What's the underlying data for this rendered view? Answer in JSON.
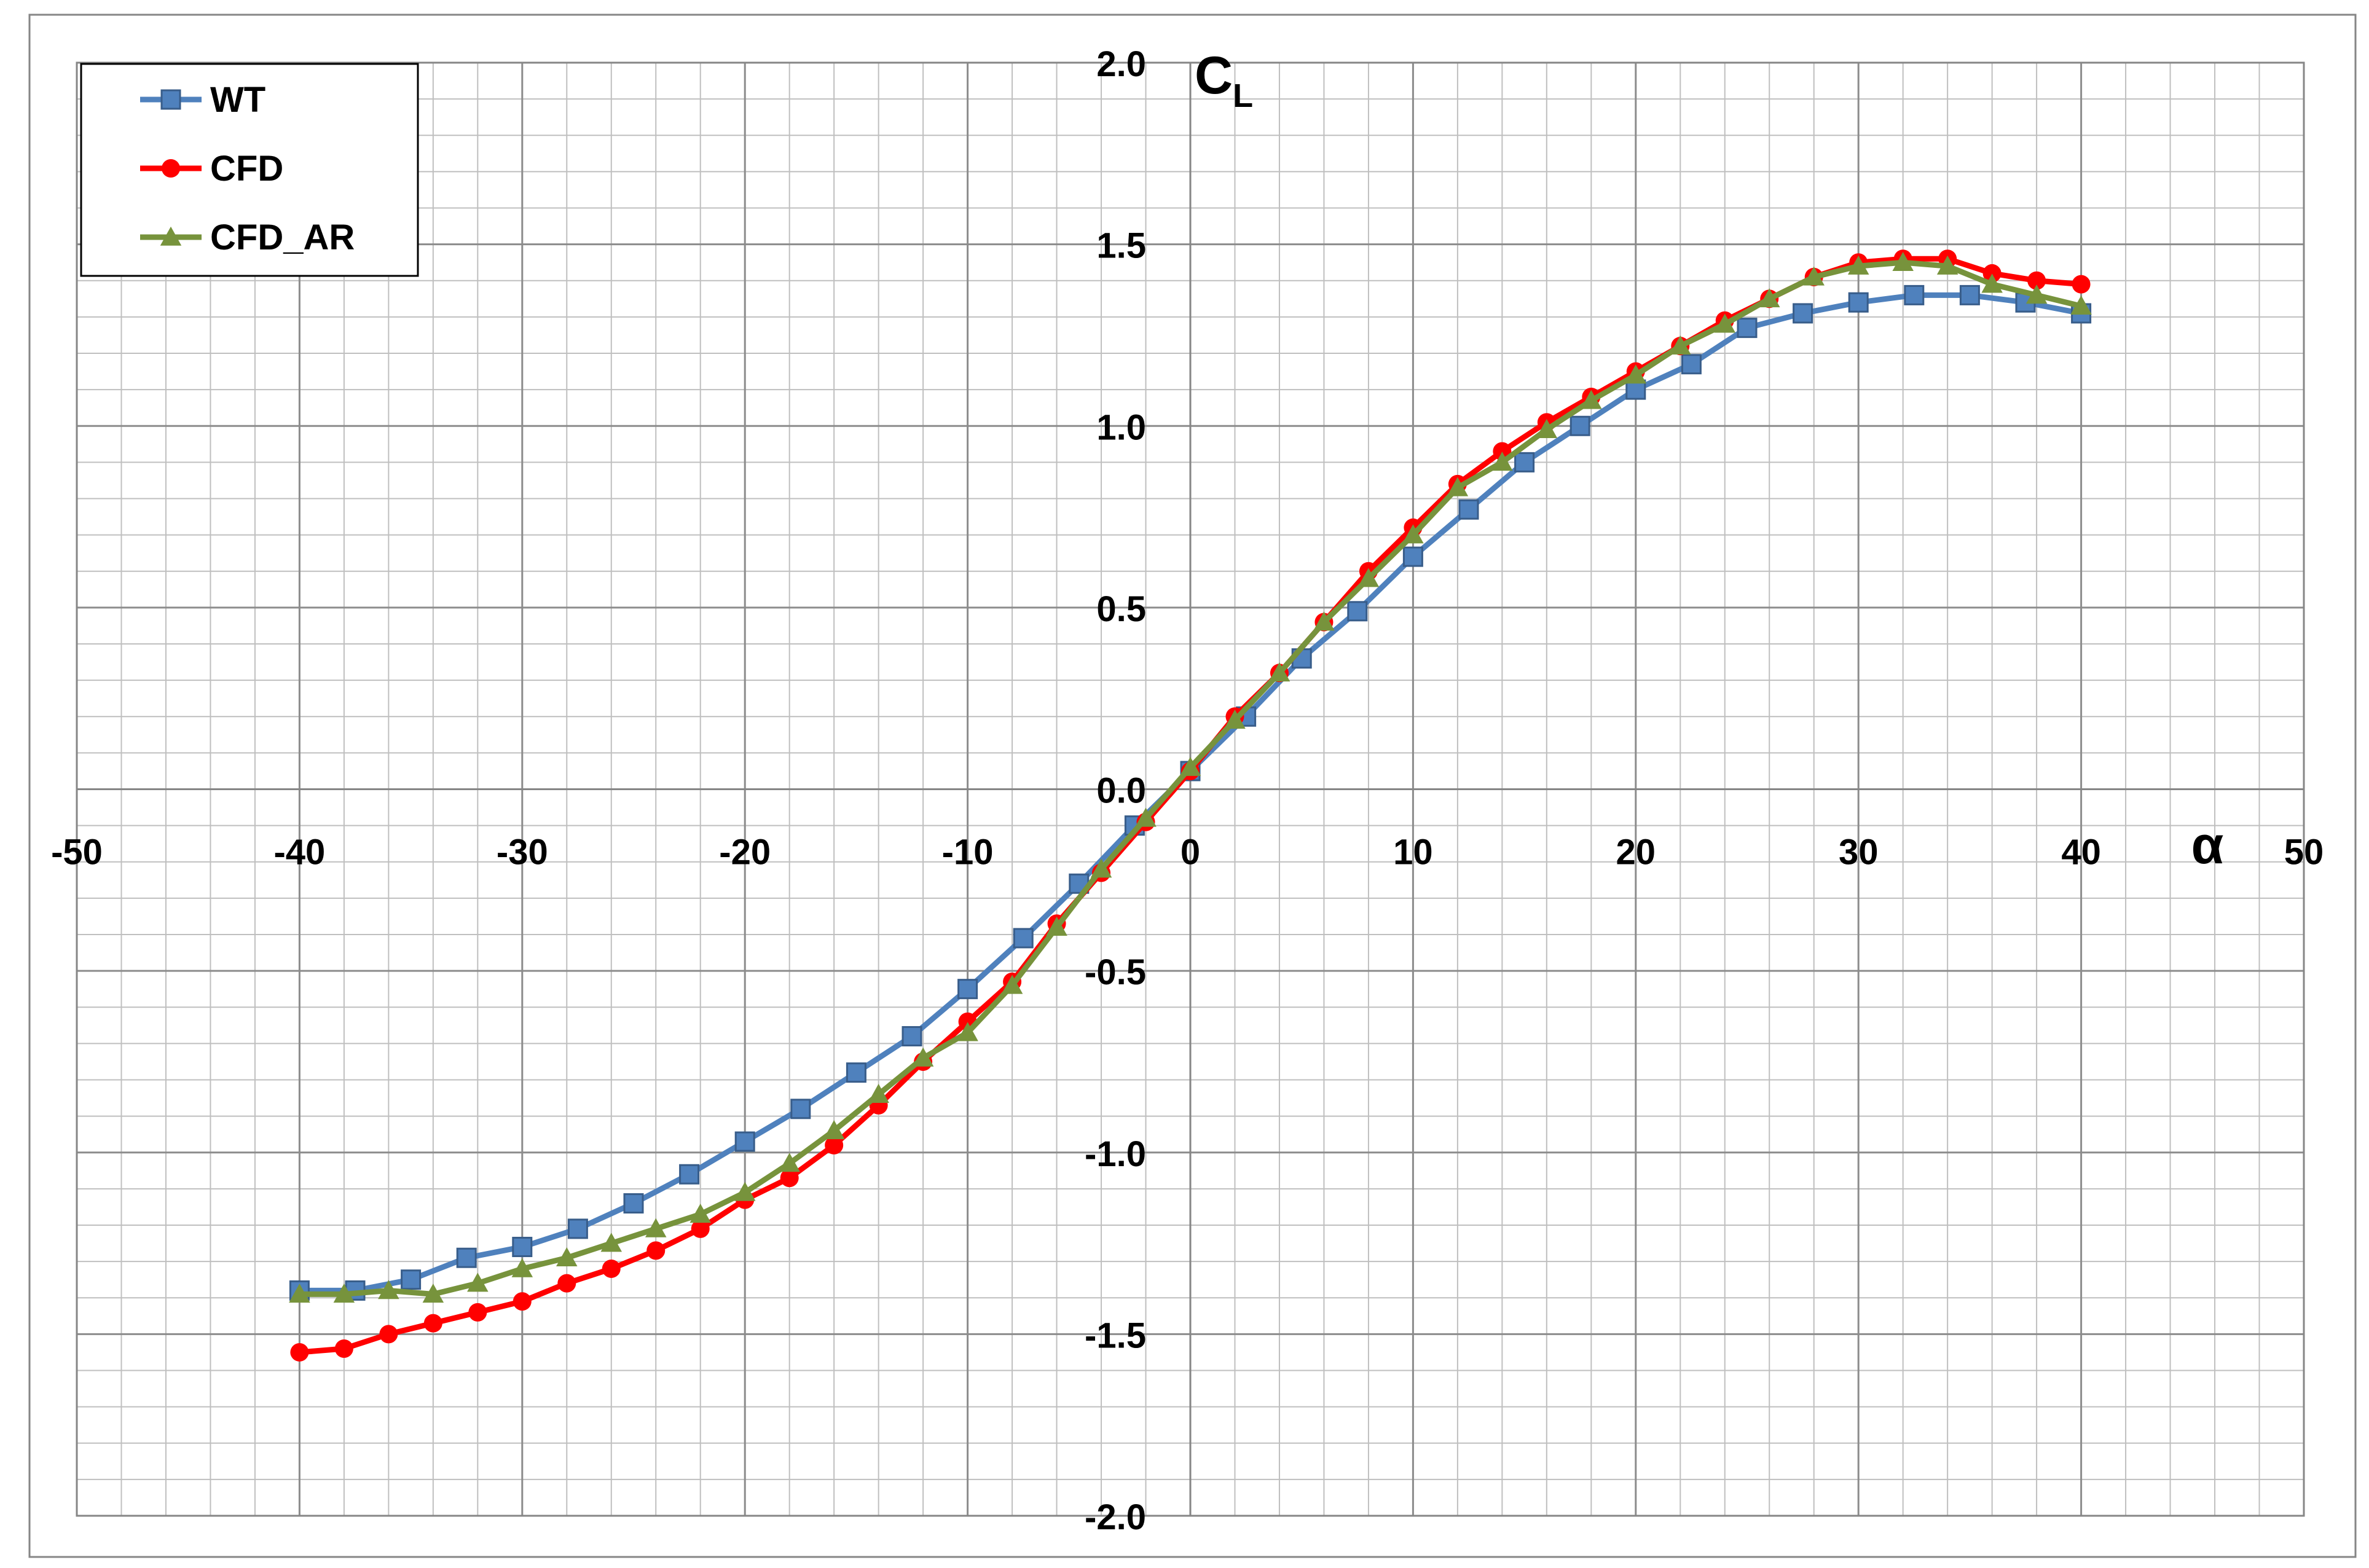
{
  "chart_data": {
    "type": "line",
    "title": "",
    "xlabel": "α",
    "ylabel": "CL",
    "ylabel_main": "C",
    "ylabel_sub": "L",
    "xlim": [
      -50,
      50
    ],
    "ylim": [
      -2.0,
      2.0
    ],
    "x_ticks": [
      -50,
      -40,
      -30,
      -20,
      -10,
      0,
      10,
      20,
      30,
      40,
      50
    ],
    "x_tick_labels": [
      "-50",
      "-40",
      "-30",
      "-20",
      "-10",
      "0",
      "10",
      "20",
      "30",
      "40",
      "50"
    ],
    "y_ticks": [
      -2.0,
      -1.5,
      -1.0,
      -0.5,
      0.0,
      0.5,
      1.0,
      1.5,
      2.0
    ],
    "y_tick_labels": [
      "-2.0",
      "-1.5",
      "-1.0",
      "-0.5",
      "0.0",
      "0.5",
      "1.0",
      "1.5",
      "2.0"
    ],
    "grid": true,
    "legend_position": "top-left",
    "series": [
      {
        "name": "WT",
        "color": "#4f81bd",
        "marker": "square",
        "x": [
          -40,
          -37.5,
          -35,
          -32.5,
          -30,
          -27.5,
          -25,
          -22.5,
          -20,
          -17.5,
          -15,
          -12.5,
          -10,
          -7.5,
          -5,
          -2.5,
          0,
          2.5,
          5,
          7.5,
          10,
          12.5,
          15,
          17.5,
          20,
          22.5,
          25,
          27.5,
          30,
          32.5,
          35,
          37.5,
          40
        ],
        "y": [
          -1.38,
          -1.38,
          -1.35,
          -1.29,
          -1.26,
          -1.21,
          -1.14,
          -1.06,
          -0.97,
          -0.88,
          -0.78,
          -0.68,
          -0.55,
          -0.41,
          -0.26,
          -0.1,
          0.05,
          0.2,
          0.36,
          0.49,
          0.64,
          0.77,
          0.9,
          1.0,
          1.1,
          1.17,
          1.27,
          1.31,
          1.34,
          1.36,
          1.36,
          1.34,
          1.31
        ]
      },
      {
        "name": "CFD",
        "color": "#ff0000",
        "marker": "circle",
        "x": [
          -40,
          -38,
          -36,
          -34,
          -32,
          -30,
          -28,
          -26,
          -24,
          -22,
          -20,
          -18,
          -16,
          -14,
          -12,
          -10,
          -8,
          -6,
          -4,
          -2,
          0,
          2,
          4,
          6,
          8,
          10,
          12,
          14,
          16,
          18,
          20,
          22,
          24,
          26,
          28,
          30,
          32,
          34,
          36,
          38,
          40
        ],
        "y": [
          -1.55,
          -1.54,
          -1.5,
          -1.47,
          -1.44,
          -1.41,
          -1.36,
          -1.32,
          -1.27,
          -1.21,
          -1.13,
          -1.07,
          -0.98,
          -0.87,
          -0.75,
          -0.64,
          -0.53,
          -0.37,
          -0.23,
          -0.09,
          0.05,
          0.2,
          0.32,
          0.46,
          0.6,
          0.72,
          0.84,
          0.93,
          1.01,
          1.08,
          1.15,
          1.22,
          1.29,
          1.35,
          1.41,
          1.45,
          1.46,
          1.46,
          1.42,
          1.4,
          1.39
        ]
      },
      {
        "name": "CFD_AR",
        "color": "#77933c",
        "marker": "triangle",
        "x": [
          -40,
          -38,
          -36,
          -34,
          -32,
          -30,
          -28,
          -26,
          -24,
          -22,
          -20,
          -18,
          -16,
          -14,
          -12,
          -10,
          -8,
          -6,
          -4,
          -2,
          0,
          2,
          4,
          6,
          8,
          10,
          12,
          14,
          16,
          18,
          20,
          22,
          24,
          26,
          28,
          30,
          32,
          34,
          36,
          38,
          40
        ],
        "y": [
          -1.39,
          -1.39,
          -1.38,
          -1.39,
          -1.36,
          -1.32,
          -1.29,
          -1.25,
          -1.21,
          -1.17,
          -1.11,
          -1.03,
          -0.94,
          -0.84,
          -0.74,
          -0.67,
          -0.54,
          -0.38,
          -0.22,
          -0.08,
          0.06,
          0.19,
          0.32,
          0.46,
          0.58,
          0.7,
          0.83,
          0.9,
          0.99,
          1.07,
          1.14,
          1.22,
          1.28,
          1.35,
          1.41,
          1.44,
          1.45,
          1.44,
          1.39,
          1.36,
          1.33
        ]
      }
    ]
  }
}
